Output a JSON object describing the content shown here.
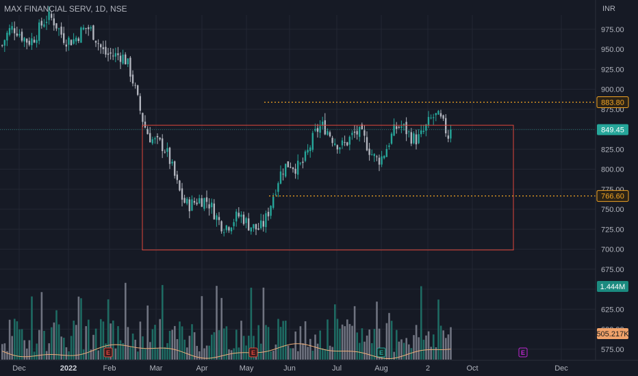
{
  "header": {
    "symbol_title": "MAX FINANCIAL SERV, 1D, NSE",
    "currency": "INR"
  },
  "colors": {
    "background": "#161a25",
    "grid": "#232733",
    "up": "#26a69a",
    "down": "#b2b5be",
    "volume_up": "#1e6b63",
    "volume_down": "#6f7380",
    "rectangle": "#e0473b",
    "level_line": "#f5a623",
    "ma_line": "#f0b07a",
    "last_price": "#26a69a"
  },
  "chart_data": {
    "type": "candlestick",
    "x_ticks": [
      "Dec",
      "2022",
      "Feb",
      "Mar",
      "Apr",
      "May",
      "Jun",
      "Jul",
      "Aug",
      "2",
      "Oct",
      "Dec"
    ],
    "y_ticks": [
      "975.00",
      "950.00",
      "925.00",
      "900.00",
      "875.00",
      "850.00",
      "825.00",
      "800.00",
      "775.00",
      "750.00",
      "725.00",
      "700.00",
      "675.00",
      "650.00",
      "625.00",
      "600.00",
      "575.00"
    ],
    "ylim": [
      562,
      1003
    ],
    "price_series": {
      "name": "",
      "segments": [
        {
          "from": "Dec",
          "to": "Jan",
          "start": 950,
          "end": 985
        },
        {
          "from": "Jan",
          "to": "Feb",
          "start": 985,
          "end": 950
        },
        {
          "from": "Feb",
          "to": "Mar",
          "start": 950,
          "end": 835
        },
        {
          "from": "Mar",
          "to": "Apr",
          "start": 835,
          "end": 745
        },
        {
          "from": "Apr",
          "to": "May",
          "start": 745,
          "end": 720
        },
        {
          "from": "May",
          "to": "Jun",
          "start": 720,
          "end": 810
        },
        {
          "from": "Jun",
          "to": "Jul",
          "start": 810,
          "end": 840
        },
        {
          "from": "Jul",
          "to": "Aug",
          "start": 840,
          "end": 835
        },
        {
          "from": "Aug",
          "to": "Sep",
          "start": 835,
          "end": 849.45
        }
      ]
    },
    "last_price": "849.45",
    "levels": [
      {
        "label": "883.80",
        "value": 883.8
      },
      {
        "label": "766.60",
        "value": 766.6
      }
    ],
    "range_box": {
      "price_top": 855,
      "price_bottom": 699,
      "from": "Feb",
      "to": "Oct"
    },
    "volume": {
      "last_value_label": "1.444M",
      "ma_value_label": "505.217K",
      "ma_level": 0.26,
      "last_level": 0.62
    },
    "events": [
      {
        "label": "E",
        "at": "Feb",
        "kind": "earnings-negative"
      },
      {
        "label": "E",
        "at": "May",
        "kind": "earnings-negative"
      },
      {
        "label": "E",
        "at": "Aug",
        "kind": "earnings-neutral"
      },
      {
        "label": "E",
        "at": "Nov",
        "kind": "earnings-upcoming"
      }
    ]
  }
}
